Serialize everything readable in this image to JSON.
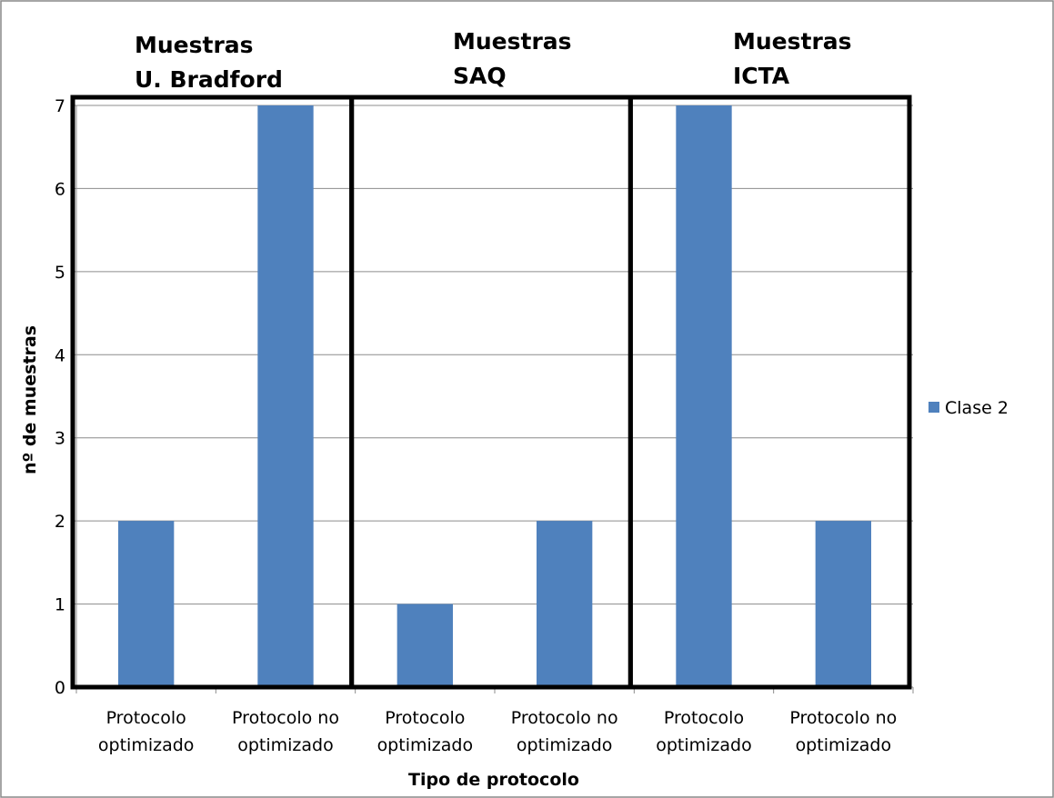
{
  "chart_data": {
    "type": "bar",
    "categories": [
      [
        "Protocolo",
        "optimizado"
      ],
      [
        "Protocolo no",
        "optimizado"
      ],
      [
        "Protocolo",
        "optimizado"
      ],
      [
        "Protocolo no",
        "optimizado"
      ],
      [
        "Protocolo",
        "optimizado"
      ],
      [
        "Protocolo no",
        "optimizado"
      ]
    ],
    "series": [
      {
        "name": "Clase 2",
        "values": [
          2,
          7,
          1,
          2,
          7,
          2
        ],
        "color": "#4F81BD"
      }
    ],
    "groups": [
      {
        "title": [
          "Muestras",
          "U. Bradford"
        ]
      },
      {
        "title": [
          "Muestras",
          "SAQ"
        ]
      },
      {
        "title": [
          "Muestras",
          "ICTA"
        ]
      }
    ],
    "xlabel": "Tipo de protocolo",
    "ylabel": "nº de muestras",
    "ylim": [
      0,
      7
    ],
    "yticks": [
      0,
      1,
      2,
      3,
      4,
      5,
      6,
      7
    ],
    "grid": true,
    "legend_position": "right"
  }
}
